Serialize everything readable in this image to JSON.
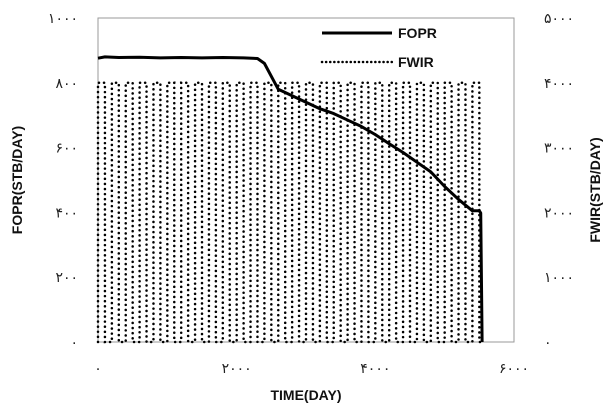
{
  "chart_data": {
    "type": "line",
    "xlabel": "TIME(DAY)",
    "ylabel_left": "FOPR(STB/DAY)",
    "ylabel_right": "FWIR(STB/DAY)",
    "xlim": [
      0,
      6000
    ],
    "ylim_left": [
      0,
      1000
    ],
    "ylim_right": [
      0,
      5000
    ],
    "x_ticks": [
      {
        "value": 0,
        "label": "۰"
      },
      {
        "value": 2000,
        "label": "۲۰۰۰"
      },
      {
        "value": 4000,
        "label": "۴۰۰۰"
      },
      {
        "value": 6000,
        "label": "۶۰۰۰"
      }
    ],
    "y_ticks_left": [
      {
        "value": 0,
        "label": "۰"
      },
      {
        "value": 200,
        "label": "۲۰۰"
      },
      {
        "value": 400,
        "label": "۴۰۰"
      },
      {
        "value": 600,
        "label": "۶۰۰"
      },
      {
        "value": 800,
        "label": "۸۰۰"
      },
      {
        "value": 1000,
        "label": "۱۰۰۰"
      }
    ],
    "y_ticks_right": [
      {
        "value": 0,
        "label": "۰"
      },
      {
        "value": 1000,
        "label": "۱۰۰۰"
      },
      {
        "value": 2000,
        "label": "۲۰۰۰"
      },
      {
        "value": 3000,
        "label": "۳۰۰۰"
      },
      {
        "value": 4000,
        "label": "۴۰۰۰"
      },
      {
        "value": 5000,
        "label": "۵۰۰۰"
      }
    ],
    "grid": false,
    "legend_position": "top-right",
    "series": [
      {
        "name": "FOPR",
        "axis": "left",
        "style": "solid",
        "color": "#000000",
        "x": [
          0,
          100,
          300,
          600,
          900,
          1200,
          1500,
          1800,
          2100,
          2300,
          2400,
          2600,
          2800,
          3000,
          3200,
          3400,
          3600,
          3800,
          4000,
          4200,
          4400,
          4600,
          4800,
          5000,
          5200,
          5400,
          5500,
          5520,
          5540
        ],
        "y": [
          876,
          880,
          878,
          879,
          877,
          878,
          877,
          878,
          877,
          875,
          860,
          780,
          760,
          740,
          720,
          705,
          685,
          665,
          640,
          612,
          585,
          555,
          525,
          480,
          440,
          405,
          405,
          398,
          0
        ]
      },
      {
        "name": "FWIR",
        "axis": "right",
        "style": "dotted",
        "color": "#000000",
        "cycle_days": 200,
        "x": [
          0,
          5540
        ],
        "y": [
          4000,
          4000
        ]
      }
    ]
  }
}
